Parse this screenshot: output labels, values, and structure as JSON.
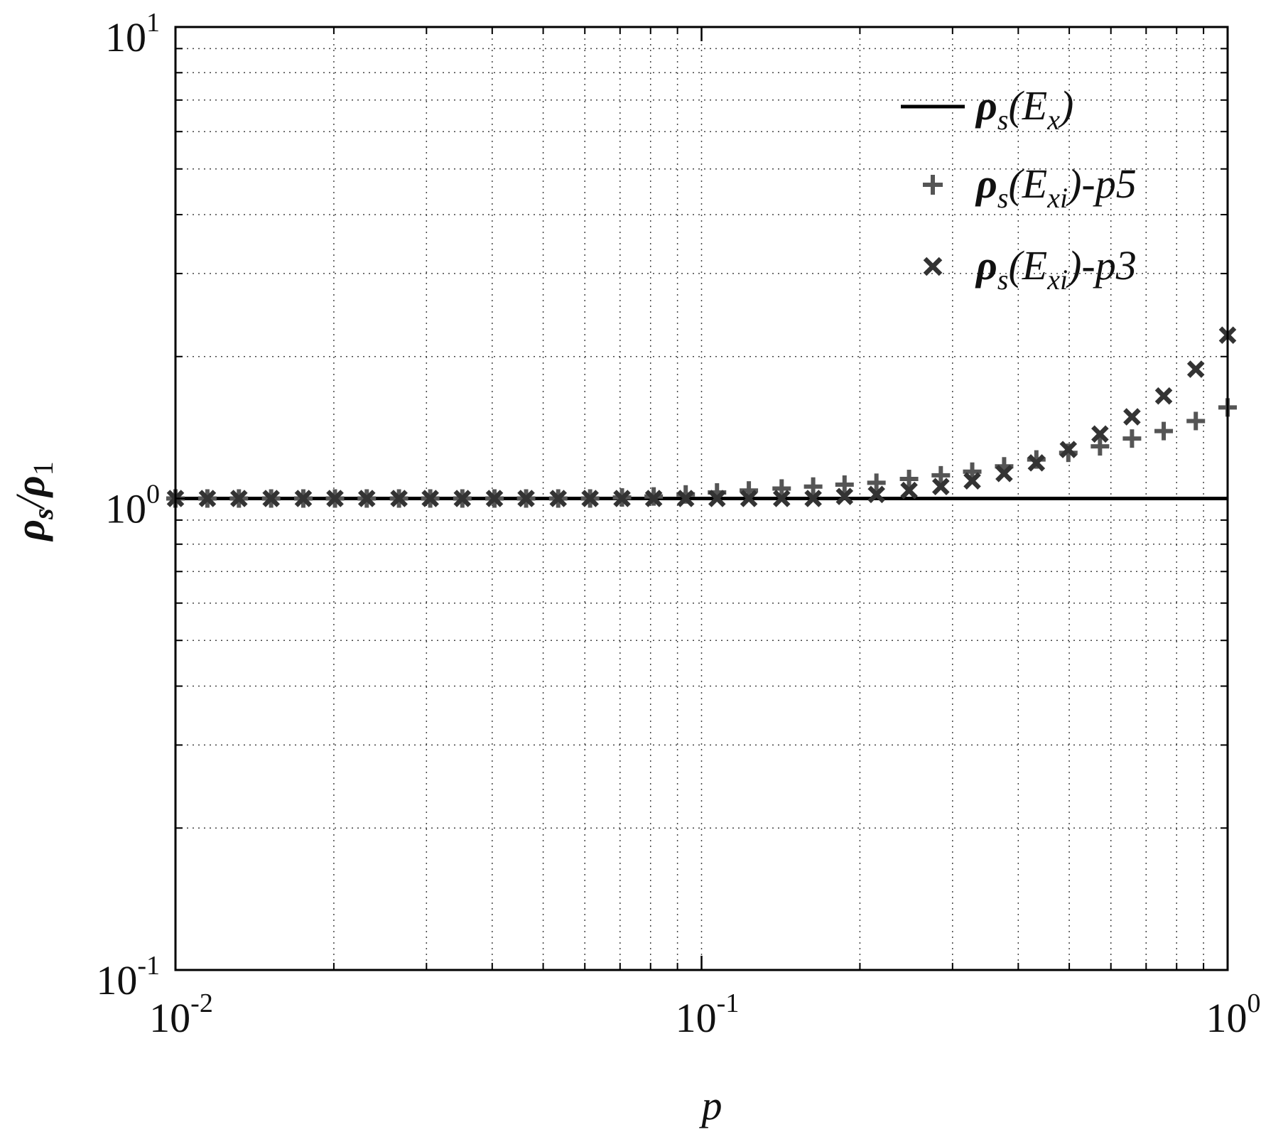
{
  "chart_data": {
    "type": "scatter",
    "title": "",
    "xlabel": "p",
    "ylabel": "ρ_s/ρ_1",
    "xscale": "log",
    "yscale": "log",
    "xlim": [
      0.01,
      1
    ],
    "ylim": [
      0.1,
      10
    ],
    "grid": true,
    "legend_position": "top-right",
    "x_ticks": [
      {
        "base": "10",
        "exp": "-2"
      },
      {
        "base": "10",
        "exp": "-1"
      },
      {
        "base": "10",
        "exp": "0"
      }
    ],
    "y_ticks": [
      {
        "base": "10",
        "exp": "-1"
      },
      {
        "base": "10",
        "exp": "0"
      },
      {
        "base": "10",
        "exp": "1"
      }
    ],
    "series": [
      {
        "name": "ρs(Ex)",
        "legend": {
          "sym": "ρ",
          "sub": "s",
          "open": "(E",
          "sub2": "x",
          "close": ")"
        },
        "marker": "line",
        "color": "#000000",
        "x": [
          0.01,
          1
        ],
        "y": [
          1.0,
          1.0
        ]
      },
      {
        "name": "ρs(Exi)-p5",
        "legend": {
          "sym": "ρ",
          "sub": "s",
          "open": "(E",
          "sub2": "xi",
          "close": ")-p5"
        },
        "marker": "plus",
        "color": "#555555",
        "x": [
          0.01,
          0.0115,
          0.0132,
          0.0152,
          0.0175,
          0.0201,
          0.0231,
          0.0266,
          0.0305,
          0.0351,
          0.0404,
          0.0464,
          0.0534,
          0.0614,
          0.0706,
          0.0811,
          0.0933,
          0.107,
          0.123,
          0.142,
          0.163,
          0.187,
          0.215,
          0.248,
          0.285,
          0.327,
          0.376,
          0.433,
          0.498,
          0.572,
          0.658,
          0.756,
          0.87,
          1.0
        ],
        "y": [
          1.0,
          1.0,
          1.0,
          1.0,
          1.0,
          1.0,
          1.0,
          1.0,
          1.0,
          1.0,
          1.0,
          1.0,
          1.0,
          1.0,
          1.005,
          1.01,
          1.02,
          1.03,
          1.04,
          1.05,
          1.06,
          1.07,
          1.08,
          1.1,
          1.12,
          1.14,
          1.17,
          1.21,
          1.25,
          1.29,
          1.34,
          1.39,
          1.46,
          1.56
        ]
      },
      {
        "name": "ρs(Exi)-p3",
        "legend": {
          "sym": "ρ",
          "sub": "s",
          "open": "(E",
          "sub2": "xi",
          "close": ")-p3"
        },
        "marker": "x",
        "color": "#333333",
        "x": [
          0.01,
          0.0115,
          0.0132,
          0.0152,
          0.0175,
          0.0201,
          0.0231,
          0.0266,
          0.0305,
          0.0351,
          0.0404,
          0.0464,
          0.0534,
          0.0614,
          0.0706,
          0.0811,
          0.0933,
          0.107,
          0.123,
          0.142,
          0.163,
          0.187,
          0.215,
          0.248,
          0.285,
          0.327,
          0.376,
          0.433,
          0.498,
          0.572,
          0.658,
          0.756,
          0.87,
          1.0
        ],
        "y": [
          1.0,
          1.0,
          1.0,
          1.0,
          1.0,
          1.0,
          1.0,
          1.0,
          1.0,
          1.0,
          1.0,
          1.0,
          1.0,
          1.0,
          1.0,
          1.0,
          1.0,
          1.0,
          1.0,
          1.0,
          1.0,
          1.01,
          1.02,
          1.04,
          1.06,
          1.09,
          1.13,
          1.19,
          1.27,
          1.37,
          1.49,
          1.65,
          1.88,
          2.22
        ]
      }
    ]
  }
}
